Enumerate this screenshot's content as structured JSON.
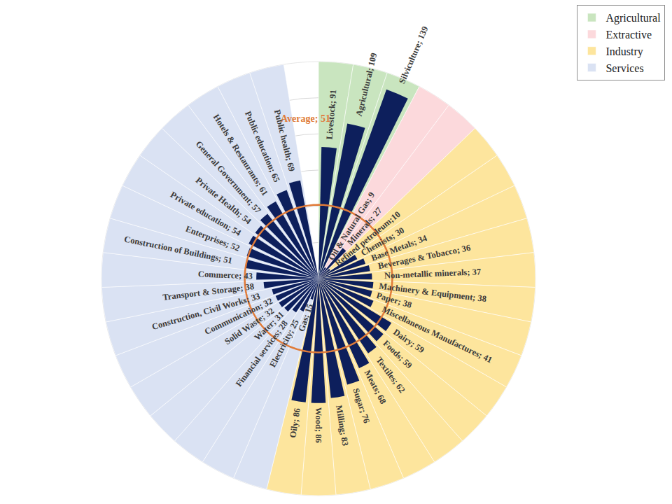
{
  "chart_data": {
    "type": "barpolar",
    "color": "#0d1f5c",
    "ylim": [
      0,
      150
    ],
    "yticks": [
      25,
      50,
      75,
      100,
      125,
      150
    ],
    "grid": true,
    "tick_labels": false,
    "legend": "upper right",
    "data_labels": true,
    "series": [
      {
        "name": "Agricultural",
        "color": "#c9e5bf",
        "categories": [
          "Livestock",
          "Agricultural",
          "Silviculture"
        ],
        "values": [
          91,
          109,
          139
        ],
        "value_labels": [
          "Livestock; 91",
          "Agricultural; 109",
          "Silviculture; 139"
        ]
      },
      {
        "name": "Extractive",
        "color": "#fcd9dc",
        "categories": [
          "Oil & Natural Gas",
          "Minerals"
        ],
        "values": [
          9,
          27
        ],
        "value_labels": [
          "Oil & Natural Gas; 9",
          "Minerals; 27"
        ]
      },
      {
        "name": "Industry",
        "color": "#fde59d",
        "categories": [
          "Refined petroleum",
          "Chemists",
          "Base Metals",
          "Beverages & Tobacco",
          "Non-metallic minerals",
          "Machinery & Equipment",
          "Paper",
          "Miscellaneous Manufactures",
          "Dairy",
          "Foods",
          "Textiles",
          "Meats",
          "Sugar",
          "Milling",
          "Wood",
          "Oily"
        ],
        "values": [
          10,
          30,
          34,
          36,
          37,
          38,
          38,
          41,
          59,
          59,
          62,
          68,
          76,
          83,
          86,
          86
        ],
        "value_labels": [
          "Refined petroleum;10",
          "Chemists; 30",
          "Base Metals; 34",
          "Beverages & Tobacco; 36",
          "Non-metallic minerals; 37",
          "Machinery & Equipment; 38",
          "Paper; 38",
          "Miscellaneous Manufactures; 41",
          "Dairy; 59",
          "Foods; 59",
          "Textiles; 62",
          "Meats; 68",
          "Sugar; 76",
          "Milling; 83",
          "Wood; 86",
          "Oily; 86"
        ]
      },
      {
        "name": "Services",
        "color": "#dae2f3",
        "categories": [
          "Gas",
          "Electricity",
          "Financial services",
          "Water",
          "Solid Waste",
          "Communication",
          "Construction, Civil Works",
          "Transport & Storage",
          "Commerce",
          "Construction of Buildings",
          "Enterprises",
          "Private education",
          "Private Health",
          "General Government",
          "Hotels & Restaurants",
          "Public education",
          "Public health"
        ],
        "values": [
          15,
          25,
          28,
          31,
          32,
          32,
          33,
          38,
          43,
          51,
          52,
          54,
          54,
          57,
          61,
          65,
          69
        ],
        "value_labels": [
          "Gas; 15",
          "Electricity; 25",
          "Financial services; 28",
          "Water; 31",
          "Solid Waste; 32",
          "Communication; 32",
          "Construction, Civil Works; 33",
          "Transport & Storage; 38",
          "Commerce; 43",
          "Construction of Buildings; 51",
          "Enterprises; 52",
          "Private education; 54",
          "Private Health; 54",
          "General Government; 57",
          "Hotels & Restaurants; 61",
          "Public education; 65",
          "Public health; 69"
        ]
      }
    ],
    "average": {
      "label": "Average; 51",
      "value": 51,
      "color": "#e07b39"
    }
  }
}
